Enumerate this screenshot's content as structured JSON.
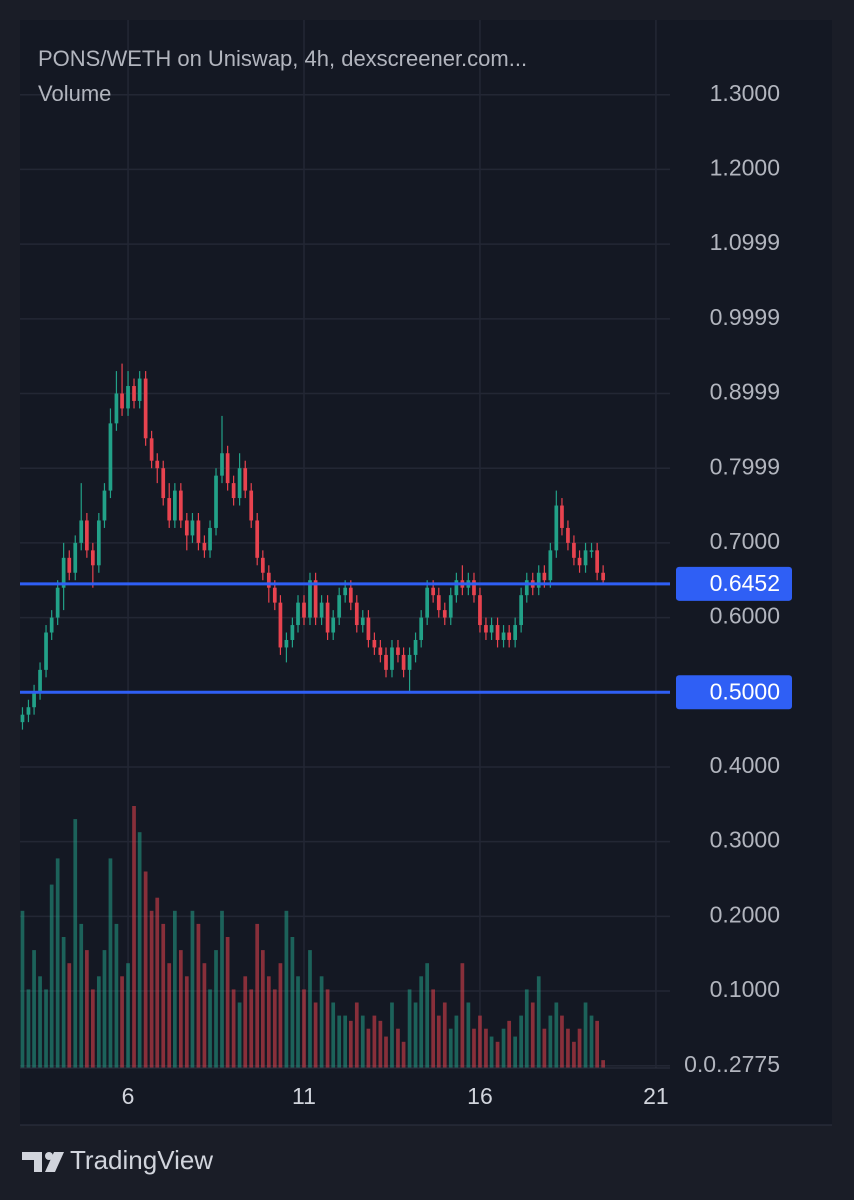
{
  "chart_data": {
    "type": "candlestick",
    "title": "PONS/WETH on Uniswap, 4h, dexscreener.com...",
    "volume_label": "Volume",
    "brand": "TradingView",
    "up_color": "#22a188",
    "down_color": "#e8434f",
    "grid": true,
    "xlim": [
      2.93,
      21.4
    ],
    "xticks": [
      6,
      11,
      16,
      21
    ],
    "ylim": [
      -0.003,
      1.4
    ],
    "yticks": [
      {
        "value": 1.3,
        "label": "1.3000"
      },
      {
        "value": 1.2,
        "label": "1.2000"
      },
      {
        "value": 1.0999,
        "label": "1.0999"
      },
      {
        "value": 0.9999,
        "label": "0.9999"
      },
      {
        "value": 0.8999,
        "label": "0.8999"
      },
      {
        "value": 0.7999,
        "label": "0.7999"
      },
      {
        "value": 0.7,
        "label": "0.7000"
      },
      {
        "value": 0.6,
        "label": "0.6000"
      },
      {
        "value": 0.4,
        "label": "0.4000"
      },
      {
        "value": 0.3,
        "label": "0.3000"
      },
      {
        "value": 0.2,
        "label": "0.2000"
      },
      {
        "value": 0.1,
        "label": "0.1000"
      },
      {
        "value": 2.775e-07,
        "label": "0.0..2775"
      }
    ],
    "y2lim": [
      0,
      400
    ],
    "price_lines": [
      {
        "value": 0.6452,
        "label": "0.6452",
        "color": "#2f5ff5"
      },
      {
        "value": 0.5,
        "label": "0.5000",
        "color": "#2f5ff5"
      }
    ],
    "x": [
      3,
      3.17,
      3.33,
      3.5,
      3.67,
      3.83,
      4,
      4.17,
      4.33,
      4.5,
      4.67,
      4.83,
      5,
      5.17,
      5.33,
      5.5,
      5.67,
      5.83,
      6,
      6.17,
      6.33,
      6.5,
      6.67,
      6.83,
      7,
      7.17,
      7.33,
      7.5,
      7.67,
      7.83,
      8,
      8.17,
      8.33,
      8.5,
      8.67,
      8.83,
      9,
      9.17,
      9.33,
      9.5,
      9.67,
      9.83,
      10,
      10.17,
      10.33,
      10.5,
      10.67,
      10.83,
      11,
      11.17,
      11.33,
      11.5,
      11.67,
      11.83,
      12,
      12.17,
      12.33,
      12.5,
      12.67,
      12.83,
      13,
      13.17,
      13.33,
      13.5,
      13.67,
      13.83,
      14,
      14.17,
      14.33,
      14.5,
      14.67,
      14.83,
      15,
      15.17,
      15.33,
      15.5,
      15.67,
      15.83,
      16,
      16.17,
      16.33,
      16.5,
      16.67,
      16.83,
      17,
      17.17,
      17.33,
      17.5,
      17.67,
      17.83,
      18,
      18.17,
      18.33,
      18.5,
      18.67,
      18.83,
      19,
      19.17,
      19.33,
      19.5
    ],
    "open": [
      0.46,
      0.47,
      0.48,
      0.5,
      0.53,
      0.58,
      0.6,
      0.64,
      0.68,
      0.66,
      0.7,
      0.73,
      0.69,
      0.67,
      0.73,
      0.77,
      0.86,
      0.9,
      0.88,
      0.91,
      0.89,
      0.92,
      0.84,
      0.81,
      0.8,
      0.76,
      0.73,
      0.77,
      0.73,
      0.71,
      0.73,
      0.7,
      0.69,
      0.72,
      0.79,
      0.82,
      0.78,
      0.76,
      0.8,
      0.77,
      0.73,
      0.68,
      0.66,
      0.64,
      0.62,
      0.56,
      0.57,
      0.59,
      0.62,
      0.6,
      0.65,
      0.6,
      0.62,
      0.58,
      0.6,
      0.63,
      0.64,
      0.62,
      0.59,
      0.6,
      0.57,
      0.56,
      0.55,
      0.53,
      0.56,
      0.55,
      0.53,
      0.55,
      0.57,
      0.6,
      0.64,
      0.63,
      0.61,
      0.6,
      0.63,
      0.65,
      0.64,
      0.65,
      0.63,
      0.59,
      0.58,
      0.59,
      0.57,
      0.58,
      0.57,
      0.59,
      0.63,
      0.65,
      0.64,
      0.66,
      0.65,
      0.69,
      0.75,
      0.72,
      0.7,
      0.68,
      0.67,
      0.69,
      0.69,
      0.66
    ],
    "high": [
      0.48,
      0.49,
      0.51,
      0.54,
      0.59,
      0.61,
      0.65,
      0.7,
      0.69,
      0.71,
      0.78,
      0.74,
      0.7,
      0.74,
      0.78,
      0.88,
      0.93,
      0.94,
      0.93,
      0.92,
      0.93,
      0.93,
      0.85,
      0.82,
      0.81,
      0.78,
      0.78,
      0.78,
      0.74,
      0.74,
      0.74,
      0.71,
      0.73,
      0.8,
      0.87,
      0.83,
      0.79,
      0.82,
      0.81,
      0.78,
      0.74,
      0.69,
      0.67,
      0.65,
      0.63,
      0.58,
      0.6,
      0.63,
      0.63,
      0.66,
      0.66,
      0.63,
      0.63,
      0.61,
      0.64,
      0.65,
      0.65,
      0.63,
      0.61,
      0.61,
      0.58,
      0.57,
      0.56,
      0.57,
      0.57,
      0.56,
      0.56,
      0.58,
      0.61,
      0.65,
      0.65,
      0.64,
      0.62,
      0.64,
      0.66,
      0.67,
      0.66,
      0.66,
      0.64,
      0.6,
      0.6,
      0.6,
      0.59,
      0.59,
      0.6,
      0.64,
      0.66,
      0.66,
      0.67,
      0.67,
      0.7,
      0.77,
      0.76,
      0.73,
      0.71,
      0.69,
      0.7,
      0.7,
      0.7,
      0.67
    ],
    "low": [
      0.45,
      0.46,
      0.47,
      0.49,
      0.52,
      0.57,
      0.59,
      0.61,
      0.65,
      0.65,
      0.69,
      0.68,
      0.64,
      0.66,
      0.72,
      0.76,
      0.85,
      0.87,
      0.87,
      0.88,
      0.88,
      0.83,
      0.8,
      0.78,
      0.75,
      0.72,
      0.72,
      0.72,
      0.69,
      0.7,
      0.69,
      0.68,
      0.68,
      0.71,
      0.78,
      0.77,
      0.75,
      0.75,
      0.76,
      0.72,
      0.67,
      0.65,
      0.62,
      0.61,
      0.55,
      0.54,
      0.56,
      0.58,
      0.59,
      0.59,
      0.59,
      0.59,
      0.57,
      0.57,
      0.59,
      0.62,
      0.61,
      0.58,
      0.58,
      0.56,
      0.55,
      0.54,
      0.52,
      0.52,
      0.54,
      0.52,
      0.5,
      0.54,
      0.56,
      0.59,
      0.62,
      0.6,
      0.59,
      0.59,
      0.62,
      0.63,
      0.63,
      0.62,
      0.58,
      0.57,
      0.57,
      0.56,
      0.56,
      0.56,
      0.56,
      0.58,
      0.62,
      0.63,
      0.63,
      0.64,
      0.64,
      0.68,
      0.71,
      0.69,
      0.67,
      0.66,
      0.66,
      0.68,
      0.65,
      0.645
    ],
    "close": [
      0.47,
      0.48,
      0.5,
      0.53,
      0.58,
      0.6,
      0.64,
      0.68,
      0.66,
      0.7,
      0.73,
      0.69,
      0.67,
      0.73,
      0.77,
      0.86,
      0.9,
      0.88,
      0.91,
      0.89,
      0.92,
      0.84,
      0.81,
      0.8,
      0.76,
      0.73,
      0.77,
      0.73,
      0.71,
      0.73,
      0.7,
      0.69,
      0.72,
      0.79,
      0.82,
      0.78,
      0.76,
      0.8,
      0.77,
      0.73,
      0.68,
      0.66,
      0.64,
      0.62,
      0.56,
      0.57,
      0.59,
      0.62,
      0.6,
      0.65,
      0.6,
      0.62,
      0.58,
      0.6,
      0.63,
      0.64,
      0.62,
      0.59,
      0.6,
      0.57,
      0.56,
      0.55,
      0.53,
      0.56,
      0.55,
      0.53,
      0.55,
      0.57,
      0.6,
      0.64,
      0.63,
      0.61,
      0.6,
      0.63,
      0.65,
      0.64,
      0.65,
      0.63,
      0.59,
      0.58,
      0.59,
      0.57,
      0.58,
      0.57,
      0.59,
      0.63,
      0.65,
      0.64,
      0.66,
      0.65,
      0.69,
      0.75,
      0.72,
      0.7,
      0.68,
      0.67,
      0.69,
      0.69,
      0.66,
      0.65
    ],
    "volume": [
      60,
      30,
      45,
      35,
      30,
      70,
      80,
      50,
      40,
      95,
      55,
      45,
      30,
      35,
      45,
      80,
      55,
      35,
      40,
      100,
      90,
      75,
      60,
      65,
      55,
      40,
      60,
      45,
      35,
      60,
      55,
      40,
      30,
      45,
      60,
      50,
      30,
      25,
      35,
      30,
      55,
      45,
      35,
      30,
      40,
      60,
      50,
      35,
      30,
      45,
      25,
      35,
      30,
      25,
      20,
      20,
      18,
      25,
      20,
      15,
      20,
      18,
      12,
      25,
      15,
      10,
      30,
      25,
      35,
      40,
      30,
      20,
      25,
      15,
      20,
      40,
      25,
      15,
      20,
      15,
      12,
      10,
      15,
      18,
      12,
      20,
      30,
      25,
      35,
      15,
      20,
      25,
      20,
      15,
      10,
      15,
      25,
      20,
      18,
      3
    ]
  }
}
